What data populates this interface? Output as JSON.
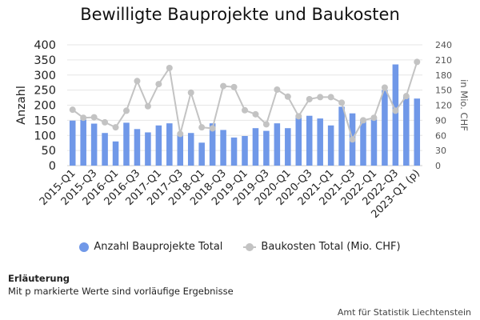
{
  "chart_data": {
    "type": "bar",
    "title": "Bewilligte Bauprojekte und Baukosten",
    "ylabel": "Anzahl",
    "y2label": "in Mio. CHF",
    "ylim": [
      0,
      400
    ],
    "y2lim": [
      0,
      240
    ],
    "yticks": [
      "0",
      "50",
      "100",
      "150",
      "200",
      "250",
      "300",
      "350",
      "400"
    ],
    "y2ticks": [
      "0",
      "30",
      "60",
      "90",
      "120",
      "150",
      "180",
      "210",
      "240"
    ],
    "grid": true,
    "legend_position": "bottom",
    "categories": [
      "2015-Q1",
      "2015-Q2",
      "2015-Q3",
      "2015-Q4",
      "2016-Q1",
      "2016-Q2",
      "2016-Q3",
      "2016-Q4",
      "2017-Q1",
      "2017-Q2",
      "2017-Q3",
      "2017-Q4",
      "2018-Q1",
      "2018-Q2",
      "2018-Q3",
      "2018-Q4",
      "2019-Q1",
      "2019-Q2",
      "2019-Q3",
      "2019-Q4",
      "2020-Q1",
      "2020-Q2",
      "2020-Q3",
      "2020-Q4",
      "2021-Q1",
      "2021-Q2",
      "2021-Q3",
      "2021-Q4",
      "2022-Q1",
      "2022-Q2",
      "2022-Q3",
      "2022-Q4",
      "2023-Q1 (p)"
    ],
    "visible_tick_labels": [
      "2015-Q1",
      "2015-Q3",
      "2016-Q1",
      "2016-Q3",
      "2017-Q1",
      "2017-Q3",
      "2018-Q1",
      "2018-Q3",
      "2019-Q1",
      "2019-Q3",
      "2020-Q1",
      "2020-Q3",
      "2021-Q1",
      "2021-Q3",
      "2022-Q1",
      "2022-Q3",
      "2023-Q1 (p)"
    ],
    "series": [
      {
        "name": "Anzahl Bauprojekte Total",
        "type": "bar",
        "axis": "left",
        "color": "#7098e8",
        "values": [
          149,
          152,
          139,
          108,
          80,
          142,
          121,
          110,
          133,
          140,
          102,
          108,
          76,
          140,
          118,
          93,
          98,
          124,
          115,
          140,
          124,
          163,
          165,
          156,
          133,
          195,
          173,
          153,
          153,
          250,
          335,
          232,
          222
        ]
      },
      {
        "name": "Baukosten Total (Mio. CHF)",
        "type": "line",
        "axis": "right",
        "color": "#c3c3c3",
        "values": [
          111,
          95,
          96,
          86,
          76,
          109,
          168,
          118,
          162,
          194,
          63,
          145,
          76,
          74,
          158,
          156,
          110,
          102,
          82,
          151,
          137,
          98,
          132,
          136,
          136,
          125,
          52,
          90,
          95,
          155,
          109,
          138,
          206
        ]
      }
    ]
  },
  "note": {
    "title": "Erläuterung",
    "text": "Mit p markierte Werte sind vorläufige Ergebnisse"
  },
  "source": "Amt für Statistik Liechtenstein"
}
